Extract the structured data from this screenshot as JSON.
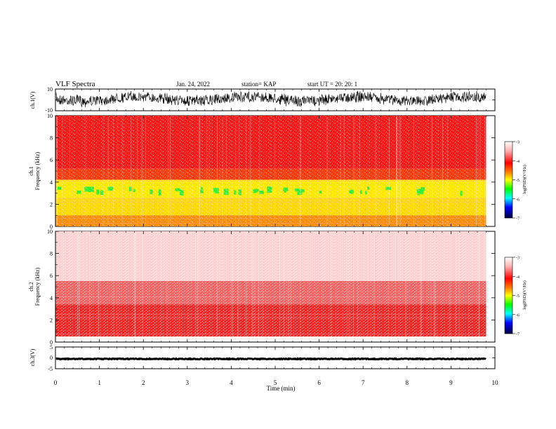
{
  "header": {
    "title": "VLF Spectra",
    "date": "Jan. 24, 2022",
    "station": "station= KAP",
    "start": "start  UT  =   20: 20: 1"
  },
  "colors": {
    "trace": "#000000",
    "spec_red": "#ff1010",
    "spec_orange": "#ff7a00",
    "spec_yellow": "#ffee00",
    "spec_green": "#33ff33"
  },
  "chart_data": [
    {
      "type": "line",
      "name": "ch1-waveform",
      "ylabel": "ch.1(V)",
      "ylim": [
        -10,
        10
      ],
      "yticks": [
        "10",
        "-10"
      ],
      "xlim": [
        0,
        10
      ]
    },
    {
      "type": "heatmap",
      "name": "ch1-spectrogram",
      "ylabel": "ch.1\nFrequency (kHz)",
      "ylim": [
        0,
        10
      ],
      "yticks": [
        "0",
        "2",
        "4",
        "6",
        "8",
        "10"
      ],
      "xlim": [
        0,
        10
      ],
      "data_extent_min": 9.8,
      "bands": [
        {
          "from": 5.2,
          "to": 10,
          "color": "red"
        },
        {
          "from": 4.2,
          "to": 5.2,
          "color": "red-orange"
        },
        {
          "from": 2.6,
          "to": 4.2,
          "color": "yellow-green"
        },
        {
          "from": 1.0,
          "to": 2.6,
          "color": "yellow"
        },
        {
          "from": 0,
          "to": 1.0,
          "color": "orange"
        }
      ],
      "colorbar": {
        "label": "log(PSD)(V²/Hz)",
        "ticks": [
          "-3",
          "-4",
          "-5",
          "-6",
          "-7"
        ],
        "range": [
          -7,
          -3
        ]
      }
    },
    {
      "type": "heatmap",
      "name": "ch2-spectrogram",
      "ylabel": "ch.2\nFrequency (kHz)",
      "ylim": [
        0,
        10
      ],
      "yticks": [
        "0",
        "2",
        "4",
        "6",
        "8",
        "10"
      ],
      "xlim": [
        0,
        10
      ],
      "data_extent_min": 9.8,
      "bands": [
        {
          "from": 5.5,
          "to": 10,
          "color": "light-red"
        },
        {
          "from": 3.4,
          "to": 5.5,
          "color": "red"
        },
        {
          "from": 0.5,
          "to": 3.4,
          "color": "yellow-orange"
        }
      ],
      "colorbar": {
        "label": "log(PSD)(V²/Hz)",
        "ticks": [
          "-3",
          "-4",
          "-5",
          "-6",
          "-7"
        ],
        "range": [
          -7,
          -3
        ]
      }
    },
    {
      "type": "line",
      "name": "ch3-waveform",
      "ylabel": "ch.3(V)",
      "ylim": [
        -5,
        5
      ],
      "yticks": [
        "5",
        "0",
        "-5"
      ],
      "xlim": [
        0,
        10
      ],
      "xlabel": "Time (min)",
      "xticks": [
        "0",
        "1",
        "2",
        "3",
        "4",
        "5",
        "6",
        "7",
        "8",
        "9",
        "10"
      ]
    }
  ]
}
